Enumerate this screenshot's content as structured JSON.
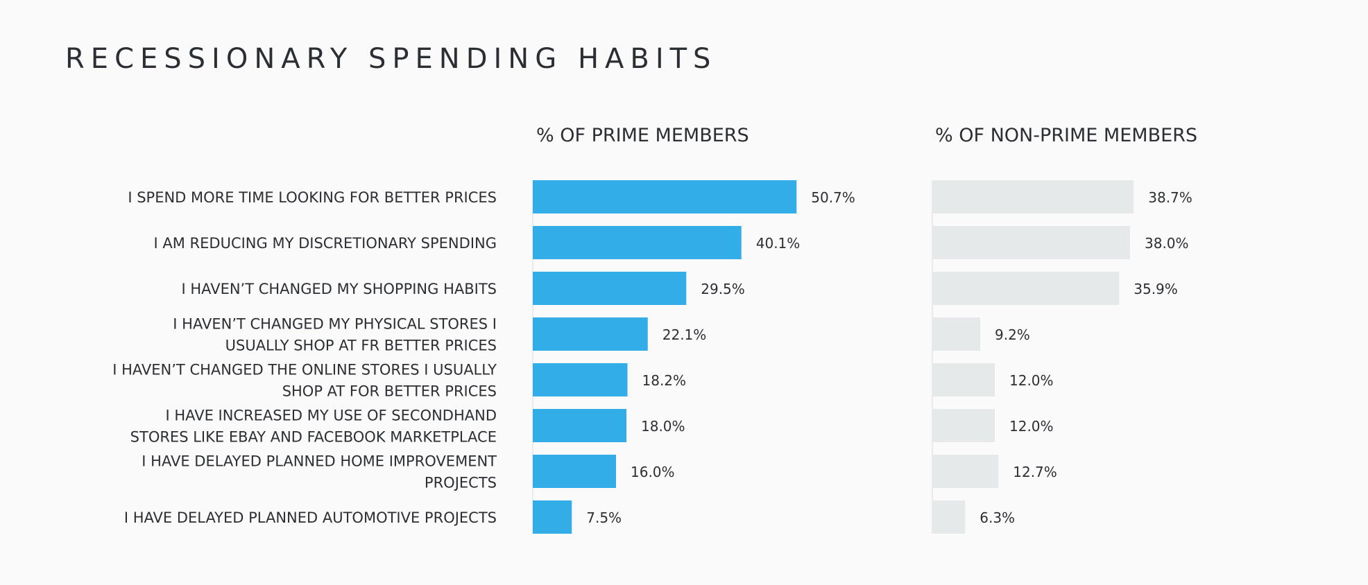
{
  "chart_data": {
    "type": "bar",
    "orientation": "horizontal",
    "title": "RECESSIONARY SPENDING HABITS",
    "categories": [
      "I SPEND MORE TIME LOOKING FOR BETTER PRICES",
      "I AM REDUCING MY DISCRETIONARY SPENDING",
      "I HAVEN’T CHANGED MY SHOPPING HABITS",
      "I HAVEN’T CHANGED MY PHYSICAL STORES I USUALLY SHOP AT FR BETTER PRICES",
      "I HAVEN’T CHANGED THE ONLINE STORES I USUALLY SHOP AT FOR BETTER PRICES",
      "I HAVE INCREASED MY USE OF SECONDHAND STORES LIKE EBAY AND FACEBOOK MARKETPLACE",
      "I HAVE DELAYED PLANNED HOME IMPROVEMENT PROJECTS",
      "I HAVE DELAYED PLANNED AUTOMOTIVE PROJECTS"
    ],
    "category_lines": [
      [
        "I SPEND MORE TIME LOOKING FOR BETTER PRICES"
      ],
      [
        "I AM REDUCING MY DISCRETIONARY SPENDING"
      ],
      [
        "I HAVEN’T CHANGED MY SHOPPING HABITS"
      ],
      [
        "I HAVEN’T CHANGED MY PHYSICAL STORES I",
        "USUALLY SHOP AT FR BETTER PRICES"
      ],
      [
        "I HAVEN’T CHANGED THE ONLINE STORES I USUALLY",
        "SHOP AT FOR BETTER PRICES"
      ],
      [
        "I HAVE INCREASED MY USE OF SECONDHAND",
        "STORES LIKE EBAY AND FACEBOOK MARKETPLACE"
      ],
      [
        "I HAVE DELAYED PLANNED HOME IMPROVEMENT",
        "PROJECTS"
      ],
      [
        "I HAVE DELAYED PLANNED AUTOMOTIVE PROJECTS"
      ]
    ],
    "series": [
      {
        "name": "% OF PRIME MEMBERS",
        "values": [
          50.7,
          40.1,
          29.5,
          22.1,
          18.2,
          18.0,
          16.0,
          7.5
        ],
        "labels": [
          "50.7%",
          "40.1%",
          "29.5%",
          "22.1%",
          "18.2%",
          "18.0%",
          "16.0%",
          "7.5%"
        ],
        "color": "#33ade8"
      },
      {
        "name": "% OF NON-PRIME MEMBERS",
        "values": [
          38.7,
          38.0,
          35.9,
          9.2,
          12.0,
          12.0,
          12.7,
          6.3
        ],
        "labels": [
          "38.7%",
          "38.0%",
          "35.9%",
          "9.2%",
          "12.0%",
          "12.0%",
          "12.7%",
          "6.3%"
        ],
        "color": "#e6e9ea"
      }
    ],
    "xlim": [
      0,
      100
    ],
    "grid": false,
    "legend": "none"
  }
}
